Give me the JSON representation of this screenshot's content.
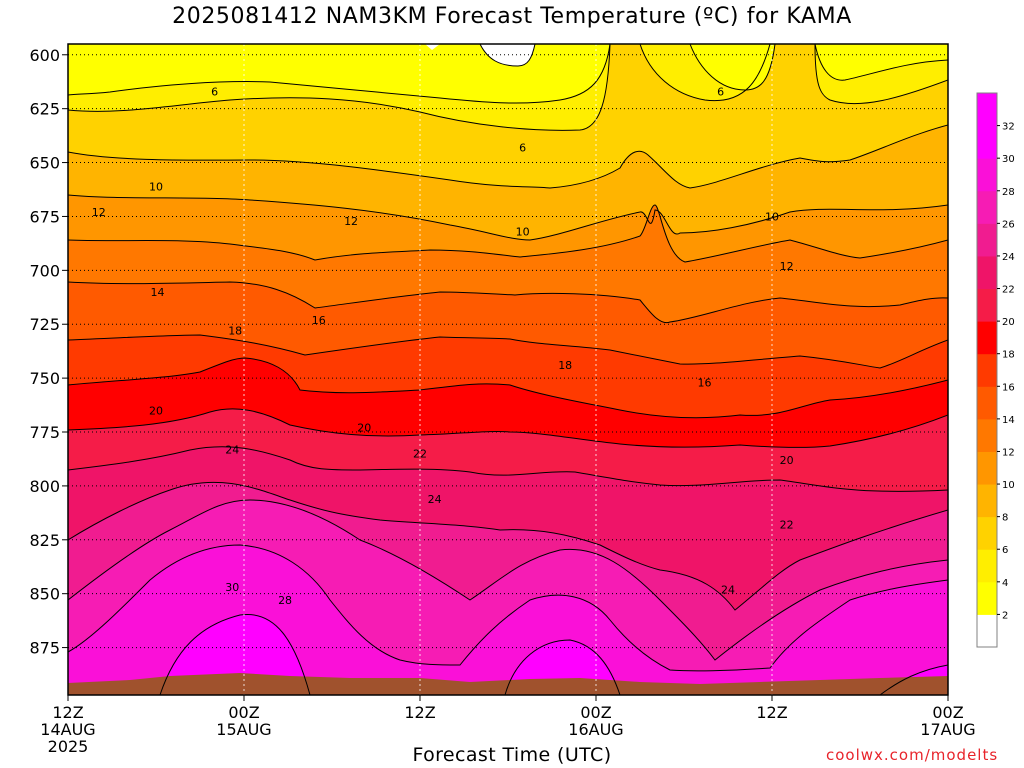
{
  "title": "2025081412 NAM3KM Forecast Temperature (ºC) for KAMA",
  "credit": "coolwx.com/modelts",
  "chart_data": {
    "type": "heatmap",
    "title": "2025081412 NAM3KM Forecast Temperature (ºC) for KAMA",
    "xlabel": "Forecast Time (UTC)",
    "ylabel": "",
    "y_axis": {
      "reversed": true,
      "range": [
        595,
        897
      ],
      "ticks": [
        600,
        625,
        650,
        675,
        700,
        725,
        750,
        775,
        800,
        825,
        850,
        875
      ]
    },
    "x_axis": {
      "range_hours": [
        0,
        60
      ],
      "ticks": [
        {
          "hour": 0,
          "lines": [
            "12Z",
            "14AUG",
            "2025"
          ]
        },
        {
          "hour": 12,
          "lines": [
            "00Z",
            "15AUG"
          ]
        },
        {
          "hour": 24,
          "lines": [
            "12Z"
          ]
        },
        {
          "hour": 36,
          "lines": [
            "00Z",
            "16AUG"
          ]
        },
        {
          "hour": 48,
          "lines": [
            "12Z"
          ]
        },
        {
          "hour": 60,
          "lines": [
            "00Z",
            "17AUG"
          ]
        }
      ]
    },
    "grid": true,
    "colorbar": {
      "position": "right",
      "levels": [
        2,
        4,
        6,
        8,
        10,
        12,
        14,
        16,
        18,
        20,
        22,
        24,
        26,
        28,
        30,
        32
      ],
      "colors": [
        "#ffffff",
        "#ffff00",
        "#ffee00",
        "#ffd200",
        "#ffb400",
        "#ff9600",
        "#ff7800",
        "#ff5a00",
        "#ff3a00",
        "#ff0000",
        "#f51c48",
        "#ef1468",
        "#f01c90",
        "#f61cb4",
        "#fa10d8",
        "#ff00ff",
        "#ff00ff"
      ]
    },
    "contour_labels": [
      {
        "value": 6,
        "hour": 10.0,
        "pres": 617
      },
      {
        "value": 6,
        "hour": 31.0,
        "pres": 643
      },
      {
        "value": 6,
        "hour": 44.5,
        "pres": 617
      },
      {
        "value": 10,
        "hour": 6.0,
        "pres": 661
      },
      {
        "value": 10,
        "hour": 31.0,
        "pres": 682
      },
      {
        "value": 10,
        "hour": 48.0,
        "pres": 675
      },
      {
        "value": 12,
        "hour": 2.1,
        "pres": 673
      },
      {
        "value": 12,
        "hour": 19.3,
        "pres": 677
      },
      {
        "value": 12,
        "hour": 49.0,
        "pres": 698
      },
      {
        "value": 14,
        "hour": 6.1,
        "pres": 710
      },
      {
        "value": 16,
        "hour": 17.1,
        "pres": 723
      },
      {
        "value": 16,
        "hour": 43.4,
        "pres": 752
      },
      {
        "value": 18,
        "hour": 11.4,
        "pres": 728
      },
      {
        "value": 18,
        "hour": 33.9,
        "pres": 744
      },
      {
        "value": 20,
        "hour": 6.0,
        "pres": 765
      },
      {
        "value": 20,
        "hour": 20.2,
        "pres": 773
      },
      {
        "value": 20,
        "hour": 49.0,
        "pres": 788
      },
      {
        "value": 22,
        "hour": 24.0,
        "pres": 785
      },
      {
        "value": 22,
        "hour": 49.0,
        "pres": 818
      },
      {
        "value": 24,
        "hour": 11.2,
        "pres": 783
      },
      {
        "value": 24,
        "hour": 25.0,
        "pres": 806
      },
      {
        "value": 24,
        "hour": 45.0,
        "pres": 848
      },
      {
        "value": 28,
        "hour": 14.8,
        "pres": 853
      },
      {
        "value": 30,
        "hour": 11.2,
        "pres": 847
      }
    ]
  }
}
